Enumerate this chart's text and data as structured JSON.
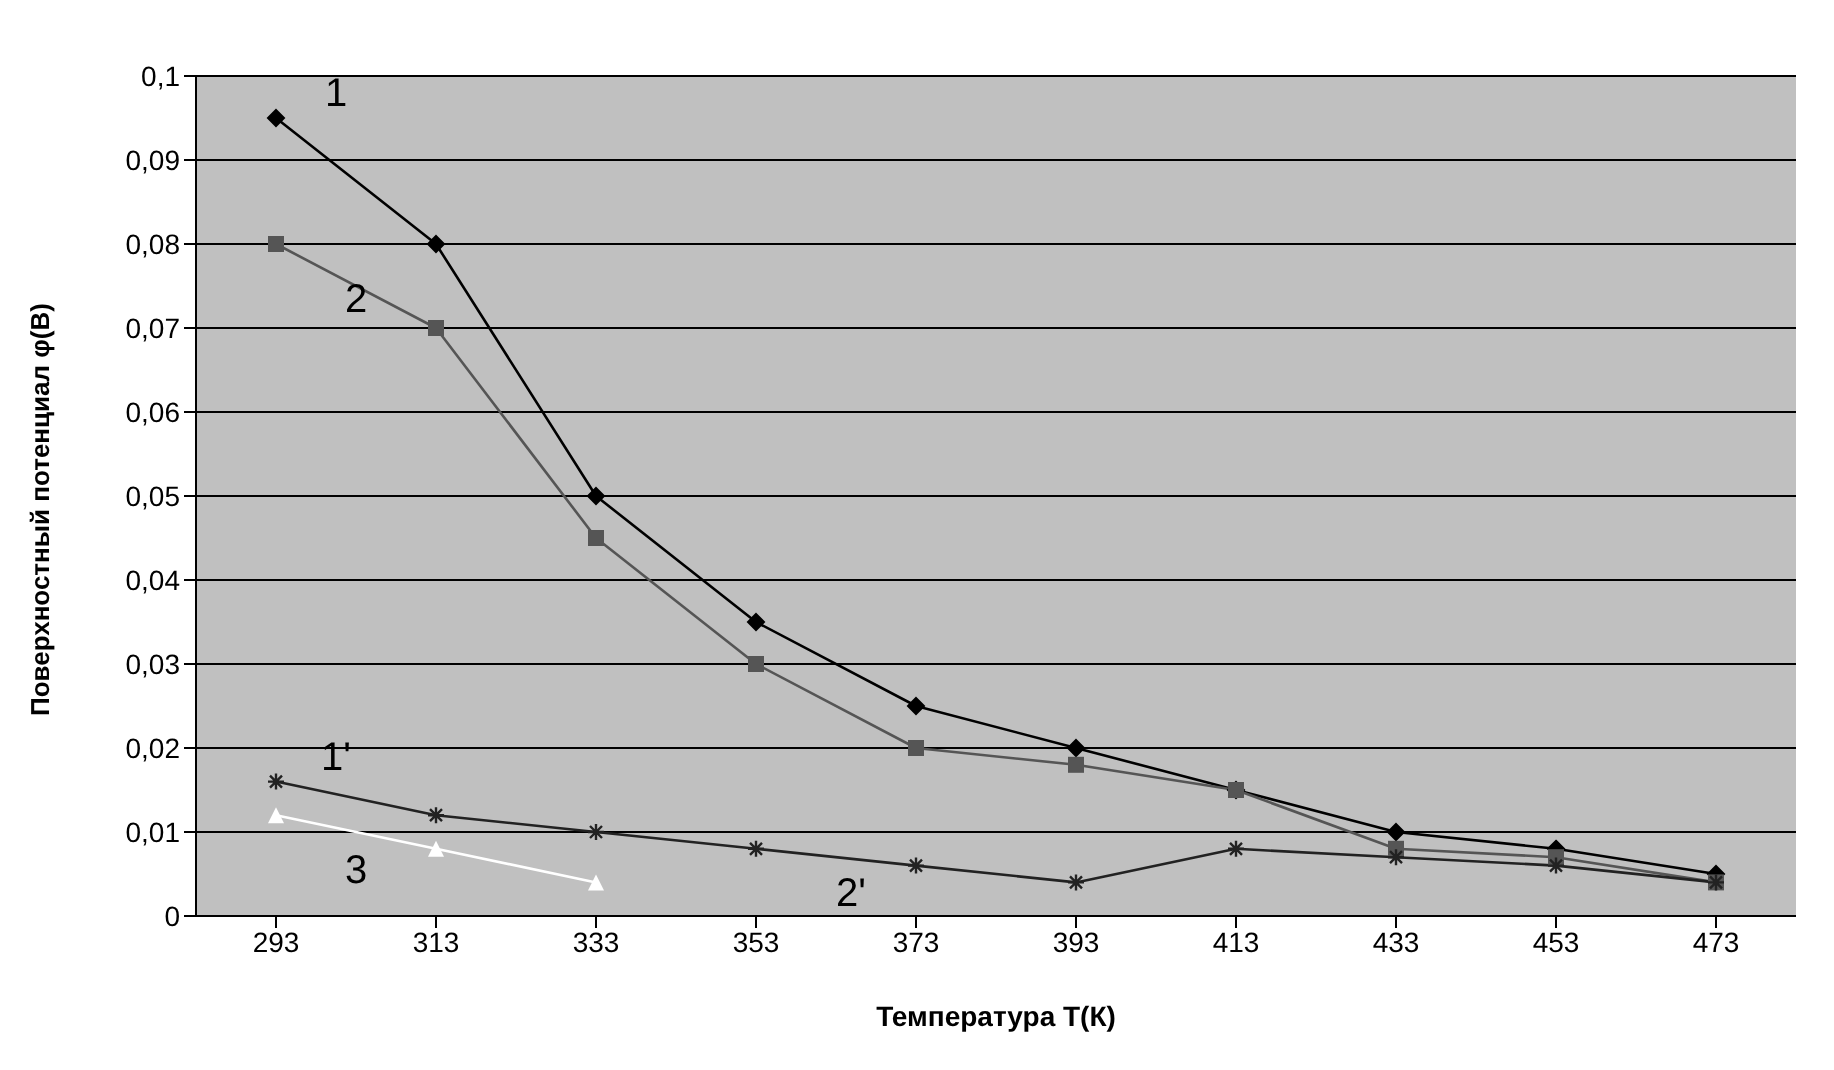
{
  "chart_data": {
    "type": "line",
    "xlabel": "Температура Т(К)",
    "ylabel": "Поверхностный потенциал φ(B)",
    "categories": [
      "293",
      "313",
      "333",
      "353",
      "373",
      "393",
      "413",
      "433",
      "453",
      "473"
    ],
    "series": [
      {
        "name": "1",
        "color": "#000000",
        "marker": "diamond",
        "values": [
          0.095,
          0.08,
          0.05,
          0.035,
          0.025,
          0.02,
          0.015,
          0.01,
          0.008,
          0.005
        ]
      },
      {
        "name": "2",
        "color": "#555555",
        "marker": "square",
        "values": [
          0.08,
          0.07,
          0.045,
          0.03,
          0.02,
          0.018,
          0.015,
          0.008,
          0.007,
          0.004
        ]
      },
      {
        "name": "1'",
        "color": "#222222",
        "marker": "cross",
        "values": [
          0.016,
          0.012,
          0.01,
          0.008,
          0.006,
          0.004,
          0.008,
          0.007,
          0.006,
          0.004
        ]
      },
      {
        "name": "3",
        "color": "#ffffff",
        "marker": "triangle",
        "values": [
          0.012,
          0.008,
          0.004,
          null,
          null,
          null,
          null,
          null,
          null,
          null
        ]
      }
    ],
    "annotations": [
      "2'"
    ],
    "ylim": [
      0,
      0.1
    ],
    "yticks": [
      0,
      {
        "value": 0.01,
        "label": "0,01"
      },
      {
        "value": 0.02,
        "label": "0,02"
      },
      {
        "value": 0.03,
        "label": "0,03"
      },
      {
        "value": 0.04,
        "label": "0,04"
      },
      {
        "value": 0.05,
        "label": "0,05"
      },
      {
        "value": 0.06,
        "label": "0,06"
      },
      {
        "value": 0.07,
        "label": "0,07"
      },
      {
        "value": 0.08,
        "label": "0,08"
      },
      {
        "value": 0.09,
        "label": "0,09"
      },
      {
        "value": 0.1,
        "label": "0,1"
      }
    ],
    "grid": "y",
    "legend": false
  }
}
